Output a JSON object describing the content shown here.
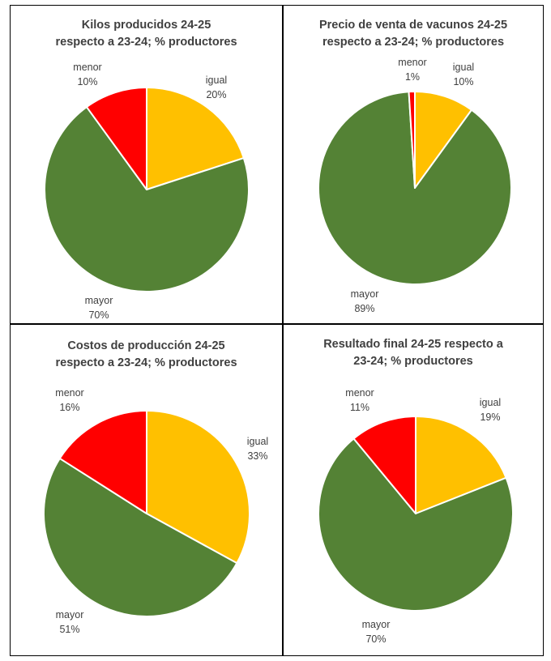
{
  "chart_data": [
    {
      "type": "pie",
      "title_line1": "Kilos producidos 24-25",
      "title_line2": "respecto a 23-24; % productores",
      "slices": [
        {
          "name": "igual",
          "value": 20,
          "label": "20%",
          "color": "#FFC000"
        },
        {
          "name": "mayor",
          "value": 70,
          "label": "70%",
          "color": "#548235"
        },
        {
          "name": "menor",
          "value": 10,
          "label": "10%",
          "color": "#FF0000"
        }
      ]
    },
    {
      "type": "pie",
      "title_line1": "Precio de venta de vacunos 24-25",
      "title_line2": "respecto a 23-24; % productores",
      "slices": [
        {
          "name": "igual",
          "value": 10,
          "label": "10%",
          "color": "#FFC000"
        },
        {
          "name": "mayor",
          "value": 89,
          "label": "89%",
          "color": "#548235"
        },
        {
          "name": "menor",
          "value": 1,
          "label": "1%",
          "color": "#FF0000"
        }
      ]
    },
    {
      "type": "pie",
      "title_line1": "Costos de producción 24-25",
      "title_line2": "respecto a 23-24; % productores",
      "slices": [
        {
          "name": "igual",
          "value": 33,
          "label": "33%",
          "color": "#FFC000"
        },
        {
          "name": "mayor",
          "value": 51,
          "label": "51%",
          "color": "#548235"
        },
        {
          "name": "menor",
          "value": 16,
          "label": "16%",
          "color": "#FF0000"
        }
      ]
    },
    {
      "type": "pie",
      "title_line1": "Resultado final 24-25 respecto a",
      "title_line2": "23-24; % productores",
      "slices": [
        {
          "name": "igual",
          "value": 19,
          "label": "19%",
          "color": "#FFC000"
        },
        {
          "name": "mayor",
          "value": 70,
          "label": "70%",
          "color": "#548235"
        },
        {
          "name": "menor",
          "value": 11,
          "label": "11%",
          "color": "#FF0000"
        }
      ]
    }
  ]
}
